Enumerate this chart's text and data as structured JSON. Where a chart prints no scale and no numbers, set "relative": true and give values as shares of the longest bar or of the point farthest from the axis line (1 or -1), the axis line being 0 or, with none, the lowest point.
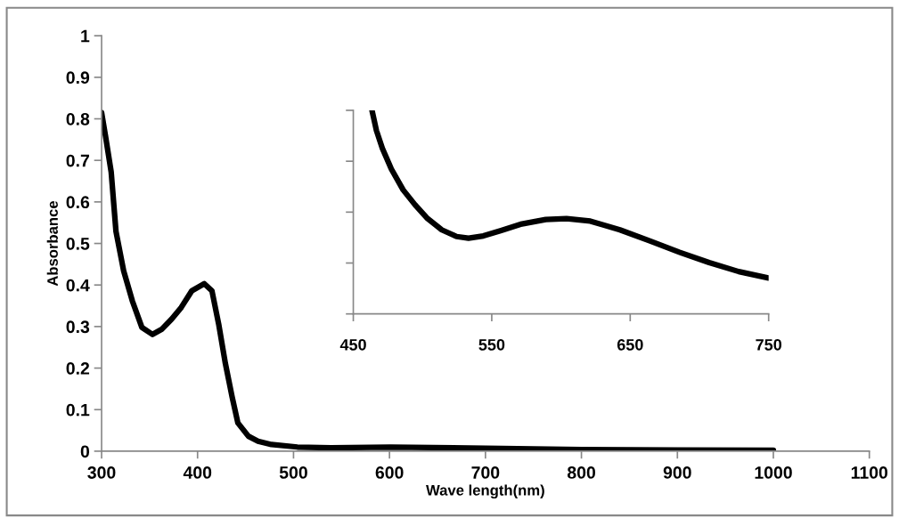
{
  "chart_data": [
    {
      "type": "line",
      "xlabel": "Wave length(nm)",
      "ylabel": "Absorbance",
      "xlim": [
        300,
        1100
      ],
      "ylim": [
        0,
        1
      ],
      "xticks": [
        300,
        400,
        500,
        600,
        700,
        800,
        900,
        1000,
        1100
      ],
      "yticks": [
        0,
        0.1,
        0.2,
        0.3,
        0.4,
        0.5,
        0.6,
        0.7,
        0.8,
        0.9,
        1
      ],
      "grid": false,
      "marker": "none",
      "line_style": "solid",
      "series": [
        {
          "color": "#000000",
          "x": [
            300,
            304,
            310,
            315,
            323,
            332,
            342,
            353,
            363,
            373,
            383,
            394,
            407,
            415,
            422,
            429,
            436,
            442,
            453,
            463,
            477,
            504,
            539,
            601,
            700,
            800,
            900,
            1000
          ],
          "values": [
            0.815,
            0.76,
            0.672,
            0.529,
            0.434,
            0.362,
            0.298,
            0.281,
            0.294,
            0.318,
            0.346,
            0.386,
            0.403,
            0.386,
            0.306,
            0.211,
            0.131,
            0.068,
            0.036,
            0.024,
            0.016,
            0.01,
            0.008,
            0.01,
            0.007,
            0.004,
            0.003,
            0.002
          ]
        }
      ]
    },
    {
      "type": "line",
      "relative": true,
      "xlim": [
        450,
        750
      ],
      "xticks": [
        450,
        550,
        650,
        750
      ],
      "tick_labels": "x",
      "grid": false,
      "marker": "none",
      "line_style": "solid",
      "series": [
        {
          "color": "#000000",
          "x": [
            463.5,
            466.7,
            471,
            477.5,
            486,
            494.6,
            503.2,
            513.9,
            524.6,
            533.2,
            543.9,
            556.8,
            571.8,
            589,
            604,
            621.2,
            642.6,
            664.1,
            685.5,
            707,
            728.4,
            750
          ],
          "values": [
            1.0,
            0.901,
            0.813,
            0.711,
            0.609,
            0.536,
            0.471,
            0.413,
            0.38,
            0.372,
            0.383,
            0.41,
            0.442,
            0.464,
            0.468,
            0.456,
            0.413,
            0.359,
            0.303,
            0.252,
            0.208,
            0.176
          ]
        }
      ]
    }
  ]
}
